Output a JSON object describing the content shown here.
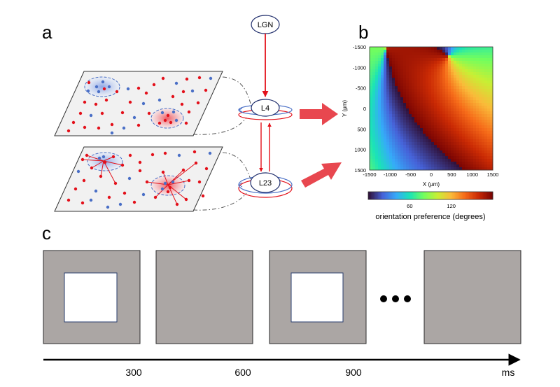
{
  "panels": {
    "a": "a",
    "b": "b",
    "c": "c"
  },
  "nodes": {
    "lgn": "LGN",
    "l4": "L4",
    "l23": "L23"
  },
  "map": {
    "x_axis_label": "X  (μm)",
    "y_axis_label": "Y  (μm)",
    "x_ticks": [
      "-1500",
      "-1000",
      "-500",
      "0",
      "500",
      "1000",
      "1500"
    ],
    "y_ticks": [
      "-1500",
      "-1000",
      "-500",
      "0",
      "500",
      "1000",
      "1500"
    ],
    "colorbar_ticks": [
      "60",
      "120"
    ],
    "colorbar_label": "orientation preference (degrees)",
    "colormap": [
      "#30123b",
      "#4662d8",
      "#36aaf9",
      "#1ae4b6",
      "#72fe5e",
      "#c8ef34",
      "#faba39",
      "#f66b19",
      "#ca2a04",
      "#7a0403"
    ]
  },
  "timeline": {
    "ticks": [
      "300",
      "600",
      "900"
    ],
    "unit": "ms",
    "ellipsis": "• • •"
  },
  "colors": {
    "excitatory": "#e3101a",
    "inhibitory": "#4a6fc6",
    "frame_gray": "#aba6a4",
    "arrow_fill": "#e8474f"
  }
}
